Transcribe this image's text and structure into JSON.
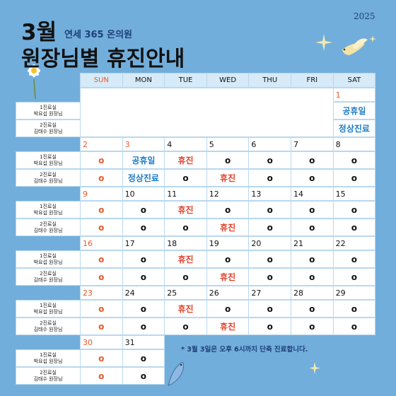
{
  "header": {
    "month": "3월",
    "clinic": "연세 365 온의원",
    "title": "원장님별 휴진안내",
    "year": "2025"
  },
  "days": [
    "SUN",
    "MON",
    "TUE",
    "WED",
    "THU",
    "FRI",
    "SAT"
  ],
  "holidays": [
    1,
    3
  ],
  "status_colors": {
    "휴진": "#e2402a",
    "공휴일": "#1c7cc4",
    "정상진료": "#1c7cc4"
  },
  "sunday_color": "#e85a2c",
  "weeks": [
    {
      "dates": [
        null,
        null,
        null,
        null,
        null,
        null,
        1
      ],
      "rows": [
        {
          "room": "1진료실",
          "doctor": "박요섭 원장님",
          "cells": [
            null,
            null,
            null,
            null,
            null,
            null,
            "공휴일"
          ]
        },
        {
          "room": "2진료실",
          "doctor": "김태수 원장님",
          "cells": [
            null,
            null,
            null,
            null,
            null,
            null,
            "정상진료"
          ]
        }
      ]
    },
    {
      "dates": [
        2,
        3,
        4,
        5,
        6,
        7,
        8
      ],
      "rows": [
        {
          "room": "1진료실",
          "doctor": "박요섭 원장님",
          "cells": [
            "o",
            "공휴일",
            "휴진",
            "o",
            "o",
            "o",
            "o"
          ]
        },
        {
          "room": "2진료실",
          "doctor": "김태수 원장님",
          "cells": [
            "o",
            "정상진료",
            "o",
            "휴진",
            "o",
            "o",
            "o"
          ]
        }
      ]
    },
    {
      "dates": [
        9,
        10,
        11,
        12,
        13,
        14,
        15
      ],
      "rows": [
        {
          "room": "1진료실",
          "doctor": "박요섭 원장님",
          "cells": [
            "o",
            "o",
            "휴진",
            "o",
            "o",
            "o",
            "o"
          ]
        },
        {
          "room": "2진료실",
          "doctor": "김태수 원장님",
          "cells": [
            "o",
            "o",
            "o",
            "휴진",
            "o",
            "o",
            "o"
          ]
        }
      ]
    },
    {
      "dates": [
        16,
        17,
        18,
        19,
        20,
        21,
        22
      ],
      "rows": [
        {
          "room": "1진료실",
          "doctor": "박요섭 원장님",
          "cells": [
            "o",
            "o",
            "휴진",
            "o",
            "o",
            "o",
            "o"
          ]
        },
        {
          "room": "2진료실",
          "doctor": "김태수 원장님",
          "cells": [
            "o",
            "o",
            "o",
            "휴진",
            "o",
            "o",
            "o"
          ]
        }
      ]
    },
    {
      "dates": [
        23,
        24,
        25,
        26,
        27,
        28,
        29
      ],
      "rows": [
        {
          "room": "1진료실",
          "doctor": "박요섭 원장님",
          "cells": [
            "o",
            "o",
            "휴진",
            "o",
            "o",
            "o",
            "o"
          ]
        },
        {
          "room": "2진료실",
          "doctor": "김태수 원장님",
          "cells": [
            "o",
            "o",
            "o",
            "휴진",
            "o",
            "o",
            "o"
          ]
        }
      ]
    },
    {
      "dates": [
        30,
        31
      ],
      "rows": [
        {
          "room": "1진료실",
          "doctor": "박요섭 원장님",
          "cells": [
            "o",
            "o"
          ]
        },
        {
          "room": "2진료실",
          "doctor": "김태수 원장님",
          "cells": [
            "o",
            "o"
          ]
        }
      ]
    }
  ],
  "note": "* 3월 3일은 오후 6시까지 단축 진료합니다."
}
